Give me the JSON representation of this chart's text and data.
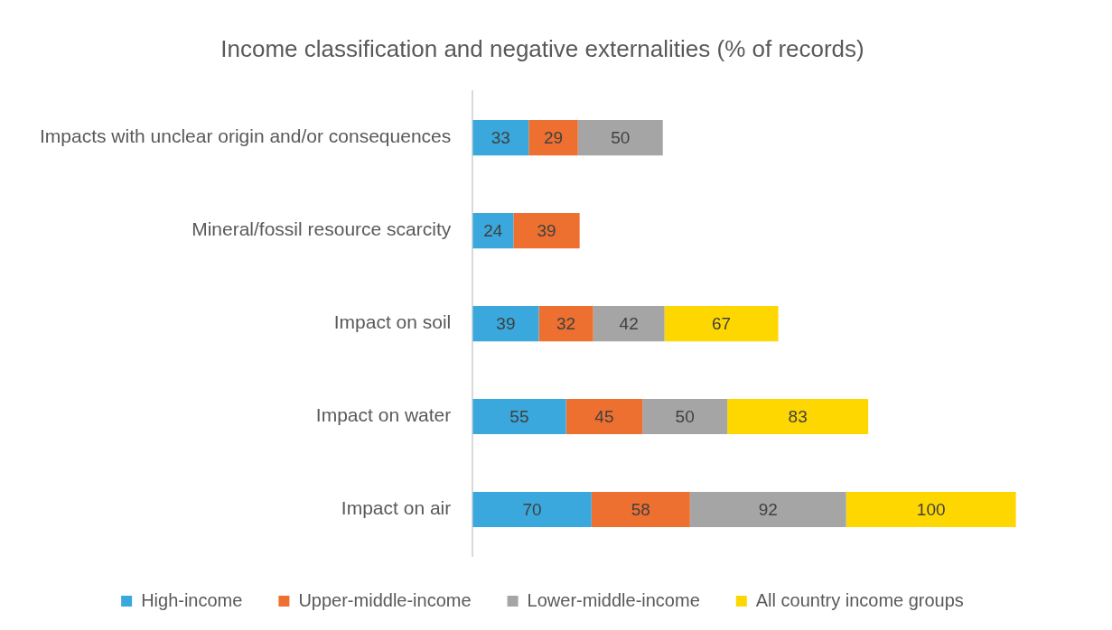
{
  "chart_data": {
    "type": "bar",
    "orientation": "horizontal",
    "stacked": true,
    "title": "Income classification and negative externalities (% of records)",
    "categories": [
      "Impacts with unclear origin and/or consequences",
      "Mineral/fossil resource scarcity",
      "Impact on soil",
      "Impact on water",
      "Impact on air"
    ],
    "series": [
      {
        "name": "High-income",
        "color": "#3aa8dc",
        "values": [
          33,
          24,
          39,
          55,
          70
        ]
      },
      {
        "name": "Upper-middle-income",
        "color": "#ed7030",
        "values": [
          29,
          39,
          32,
          45,
          58
        ]
      },
      {
        "name": "Lower-middle-income",
        "color": "#a5a5a5",
        "values": [
          50,
          null,
          42,
          50,
          92
        ]
      },
      {
        "name": "All country income groups",
        "color": "#ffd700",
        "values": [
          null,
          null,
          67,
          83,
          100
        ]
      }
    ],
    "data_labels": true,
    "legend": "bottom",
    "tick_labels": "y"
  }
}
